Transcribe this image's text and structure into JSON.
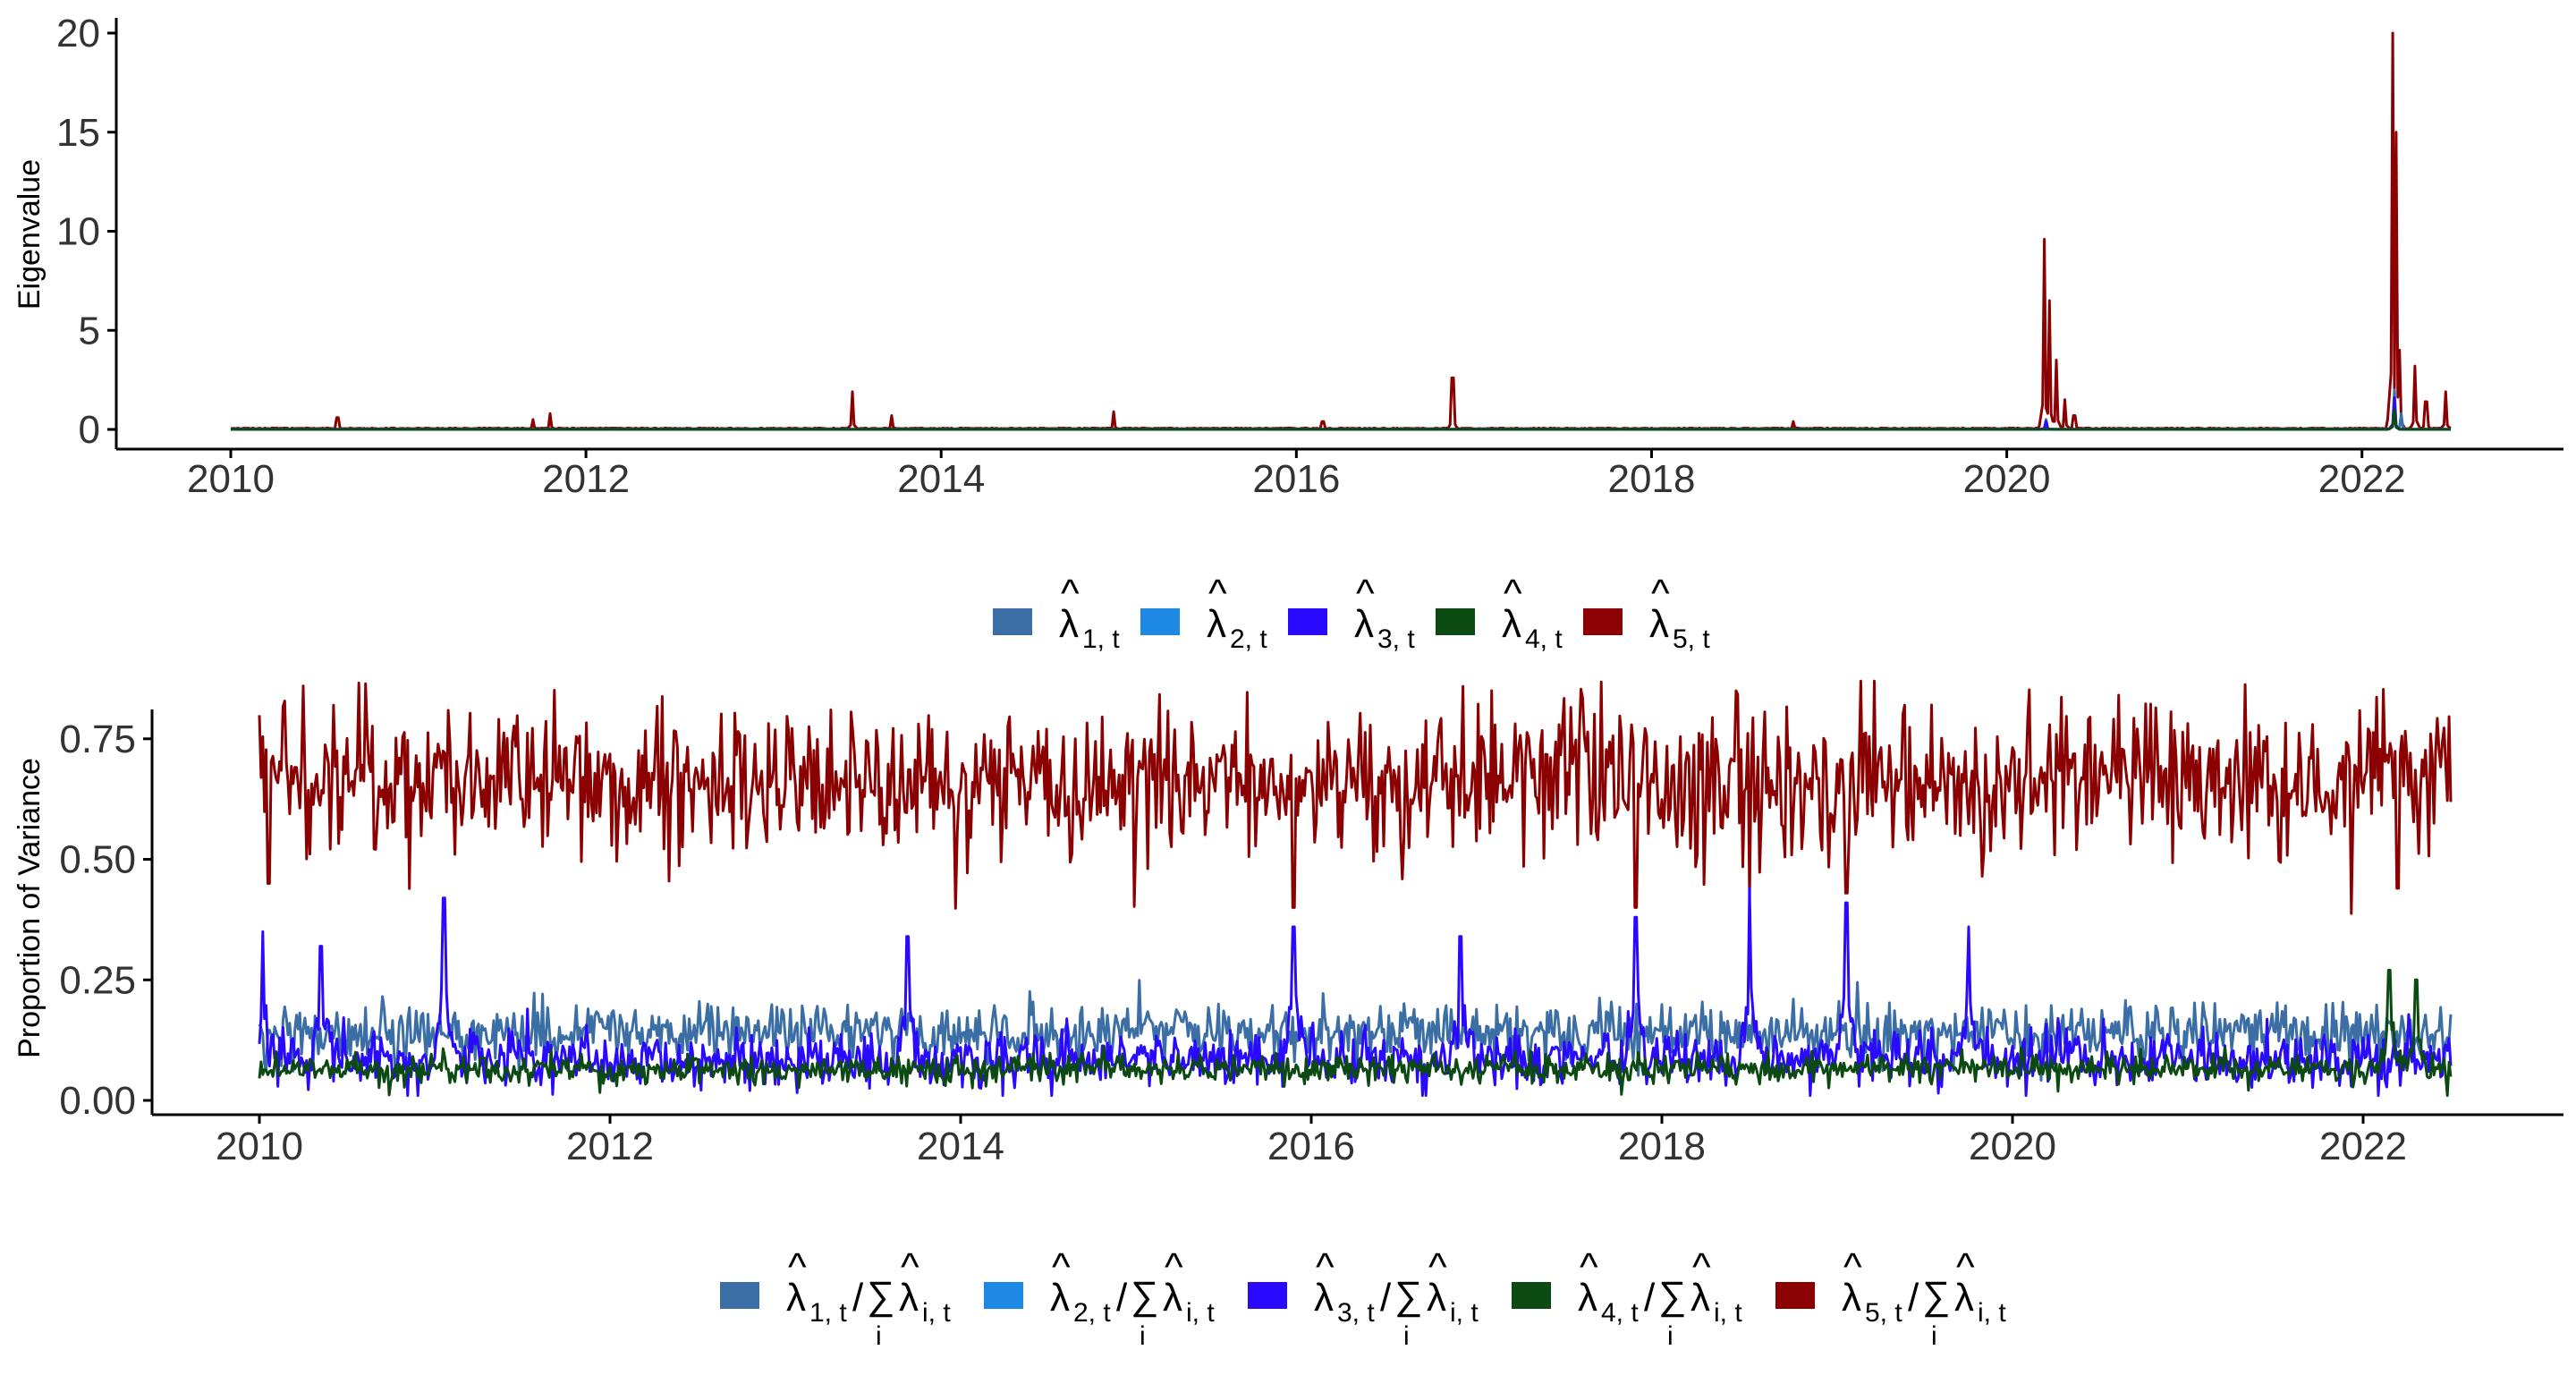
{
  "colors": {
    "lambda1": "#3A6EA5",
    "lambda2": "#1E88E5",
    "lambda3": "#2A0AFF",
    "lambda4": "#0B4A10",
    "lambda5": "#8B0000",
    "axis": "#000000",
    "background": "#ffffff"
  },
  "chart_data": [
    {
      "type": "line",
      "title": "",
      "xlabel": "",
      "ylabel": "Eigenvalue",
      "xlim": [
        2010,
        2022.5
      ],
      "ylim": [
        0,
        20
      ],
      "x_ticks": [
        "2010",
        "2012",
        "2014",
        "2016",
        "2018",
        "2020",
        "2022"
      ],
      "y_ticks": [
        "0",
        "5",
        "10",
        "15",
        "20"
      ],
      "grid": false,
      "legend_position": "bottom",
      "legend": [
        {
          "sym": "λ",
          "sub": "1, t",
          "color_key": "lambda1"
        },
        {
          "sym": "λ",
          "sub": "2, t",
          "color_key": "lambda2"
        },
        {
          "sym": "λ",
          "sub": "3, t",
          "color_key": "lambda3"
        },
        {
          "sym": "λ",
          "sub": "4, t",
          "color_key": "lambda4"
        },
        {
          "sym": "λ",
          "sub": "5, t",
          "color_key": "lambda5"
        }
      ],
      "series_style": "dense daily series; all series near 0 except spikes",
      "series": [
        {
          "legend_index": 4,
          "baseline": 0.05,
          "spikes": [
            [
              2010.6,
              0.6
            ],
            [
              2011.7,
              0.5
            ],
            [
              2011.8,
              0.8
            ],
            [
              2013.5,
              1.9
            ],
            [
              2013.72,
              0.7
            ],
            [
              2014.97,
              0.9
            ],
            [
              2016.15,
              0.4
            ],
            [
              2016.88,
              2.6
            ],
            [
              2018.8,
              0.4
            ],
            [
              2020.21,
              9.6
            ],
            [
              2020.24,
              6.5
            ],
            [
              2020.28,
              3.5
            ],
            [
              2020.33,
              1.5
            ],
            [
              2020.38,
              0.7
            ],
            [
              2022.17,
              20.0
            ],
            [
              2022.19,
              15.0
            ],
            [
              2022.21,
              4.0
            ],
            [
              2022.3,
              3.2
            ],
            [
              2022.36,
              1.4
            ],
            [
              2022.47,
              1.9
            ]
          ]
        },
        {
          "legend_index": 0,
          "baseline": 0.01,
          "spikes": [
            [
              2020.22,
              0.5
            ],
            [
              2022.18,
              2.0
            ],
            [
              2022.22,
              0.8
            ]
          ]
        },
        {
          "legend_index": 2,
          "baseline": 0.005,
          "spikes": [
            [
              2020.22,
              0.4
            ],
            [
              2022.18,
              1.6
            ]
          ]
        },
        {
          "legend_index": 3,
          "baseline": 0.004,
          "spikes": [
            [
              2022.18,
              1.0
            ]
          ]
        }
      ]
    },
    {
      "type": "line",
      "title": "",
      "xlabel": "",
      "ylabel": "Proportion of Variance",
      "xlim": [
        2010,
        2022.5
      ],
      "ylim": [
        0,
        0.9
      ],
      "x_ticks": [
        "2010",
        "2012",
        "2014",
        "2016",
        "2018",
        "2020",
        "2022"
      ],
      "y_ticks": [
        "0.00",
        "0.25",
        "0.50",
        "0.75"
      ],
      "grid": false,
      "legend_position": "bottom",
      "legend": [
        {
          "sym": "λ",
          "sub": "1, t",
          "ratio": true,
          "color_key": "lambda1"
        },
        {
          "sym": "λ",
          "sub": "2, t",
          "ratio": true,
          "color_key": "lambda2"
        },
        {
          "sym": "λ",
          "sub": "3, t",
          "ratio": true,
          "color_key": "lambda3"
        },
        {
          "sym": "λ",
          "sub": "4, t",
          "ratio": true,
          "color_key": "lambda4"
        },
        {
          "sym": "λ",
          "sub": "5, t",
          "ratio": true,
          "color_key": "lambda5"
        }
      ],
      "ratio_denominator": {
        "sym": "λ",
        "sub": "i, t",
        "sum_index": "i"
      },
      "series_style": "dense daily series with noise",
      "series": [
        {
          "legend_index": 4,
          "mean": 0.66,
          "noise": 0.075,
          "dips": [
            [
              2010.05,
              0.45
            ],
            [
              2015.9,
              0.4
            ],
            [
              2017.85,
              0.4
            ],
            [
              2019.05,
              0.43
            ],
            [
              2022.2,
              0.44
            ]
          ]
        },
        {
          "legend_index": 0,
          "mean": 0.14,
          "noise": 0.03
        },
        {
          "legend_index": 2,
          "mean": 0.085,
          "noise": 0.03,
          "spikes": [
            [
              2010.02,
              0.35
            ],
            [
              2010.35,
              0.32
            ],
            [
              2011.05,
              0.42
            ],
            [
              2013.7,
              0.34
            ],
            [
              2015.9,
              0.36
            ],
            [
              2016.85,
              0.34
            ],
            [
              2017.85,
              0.38
            ],
            [
              2018.5,
              0.44
            ],
            [
              2019.05,
              0.41
            ],
            [
              2019.75,
              0.36
            ]
          ]
        },
        {
          "legend_index": 3,
          "mean": 0.065,
          "noise": 0.015,
          "spikes": [
            [
              2022.15,
              0.27
            ],
            [
              2022.3,
              0.25
            ]
          ]
        }
      ]
    }
  ]
}
